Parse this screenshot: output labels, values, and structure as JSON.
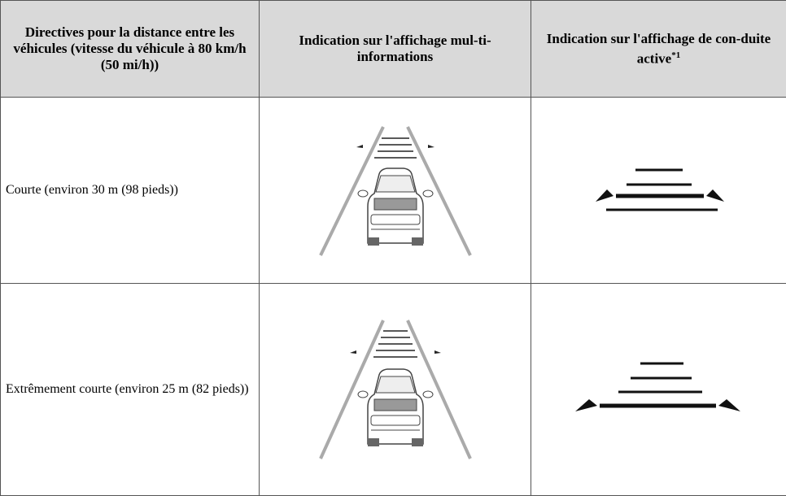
{
  "table": {
    "header": [
      {
        "text": "Directives pour la distance entre les véhicules (vitesse du véhicule à 80 km/h (50 mi/h))"
      },
      {
        "text": "Indication sur l'affichage mul-ti-informations"
      },
      {
        "text": "Indication sur l'affichage de con-duite active",
        "sup": "*1"
      }
    ],
    "rows": [
      [
        "Courte (environ 30 m (98 pieds))"
      ],
      [
        "Extrêmement courte (environ 25 m (82 pieds))"
      ]
    ]
  }
}
